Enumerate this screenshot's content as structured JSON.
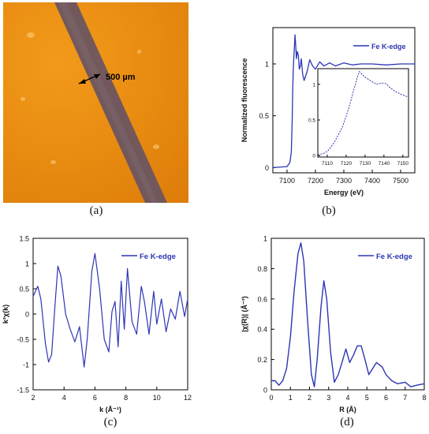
{
  "colors": {
    "series": "#2c36b4",
    "axis": "#000000",
    "micrograph_bg": "#e98d12",
    "fiber": "#6b5560"
  },
  "panel_labels": {
    "a": "(a)",
    "b": "(b)",
    "c": "(c)",
    "d": "(d)"
  },
  "micrograph": {
    "scale_label": "500 µm"
  },
  "chart_data": [
    {
      "panel": "b",
      "type": "line",
      "title": "",
      "xlabel": "Energy (eV)",
      "ylabel": "Normalized fluorescence",
      "xlim": [
        7050,
        7550
      ],
      "ylim": [
        -0.05,
        1.35
      ],
      "xticks": [
        "7100",
        "7200",
        "7300",
        "7400",
        "7500"
      ],
      "yticks": [
        "0",
        "0.5",
        "1"
      ],
      "legend": "top-right",
      "series": [
        {
          "name": "Fe K-edge",
          "x": [
            7050,
            7100,
            7110,
            7115,
            7118,
            7120,
            7122,
            7125,
            7128,
            7130,
            7133,
            7136,
            7140,
            7143,
            7147,
            7150,
            7155,
            7160,
            7170,
            7180,
            7190,
            7200,
            7215,
            7230,
            7250,
            7270,
            7300,
            7330,
            7360,
            7400,
            7450,
            7500,
            7550
          ],
          "y": [
            0.0,
            0.01,
            0.05,
            0.15,
            0.45,
            0.75,
            0.95,
            1.12,
            1.28,
            1.2,
            1.05,
            1.12,
            1.08,
            0.95,
            0.98,
            1.05,
            0.9,
            0.84,
            0.92,
            1.04,
            0.98,
            0.95,
            1.02,
            0.98,
            1.01,
            0.98,
            1.01,
            0.99,
            1.0,
            1.0,
            0.99,
            1.0,
            1.0
          ]
        }
      ],
      "inset": {
        "type": "line",
        "xlim": [
          7105,
          7153
        ],
        "ylim": [
          -0.02,
          1.22
        ],
        "xticks": [
          "7110",
          "7120",
          "7130",
          "7140",
          "7150"
        ],
        "yticks": [
          "0",
          "0.5",
          "1"
        ],
        "x": [
          7105,
          7108,
          7110,
          7112,
          7114,
          7116,
          7118,
          7120,
          7122,
          7124,
          7126,
          7127,
          7128,
          7130,
          7133,
          7136,
          7139,
          7141,
          7143,
          7146,
          7149,
          7153
        ],
        "y": [
          0.01,
          0.03,
          0.06,
          0.12,
          0.2,
          0.3,
          0.4,
          0.55,
          0.72,
          0.92,
          1.1,
          1.18,
          1.15,
          1.1,
          1.05,
          1.0,
          1.02,
          1.01,
          0.96,
          0.9,
          0.86,
          0.82
        ]
      }
    },
    {
      "panel": "c",
      "type": "line",
      "title": "",
      "xlabel": "k (Å⁻¹)",
      "ylabel": "k²χ(k)",
      "xlim": [
        2,
        12
      ],
      "ylim": [
        -1.5,
        1.5
      ],
      "xticks": [
        "2",
        "4",
        "6",
        "8",
        "10",
        "12"
      ],
      "yticks": [
        "-1.5",
        "-1",
        "-0.5",
        "0",
        "0.5",
        "1",
        "1.5"
      ],
      "legend": "top-right",
      "series": [
        {
          "name": "Fe K-edge",
          "x": [
            2.0,
            2.3,
            2.5,
            2.8,
            3.0,
            3.2,
            3.4,
            3.6,
            3.8,
            4.1,
            4.4,
            4.7,
            5.0,
            5.3,
            5.5,
            5.8,
            6.0,
            6.3,
            6.6,
            6.9,
            7.1,
            7.3,
            7.5,
            7.7,
            7.9,
            8.1,
            8.4,
            8.7,
            9.0,
            9.2,
            9.5,
            9.8,
            10.0,
            10.3,
            10.6,
            10.9,
            11.2,
            11.5,
            11.8,
            12.0
          ],
          "y": [
            0.35,
            0.55,
            0.3,
            -0.6,
            -0.95,
            -0.8,
            0.1,
            0.95,
            0.75,
            0.0,
            -0.3,
            -0.55,
            -0.25,
            -1.05,
            -0.5,
            0.85,
            1.2,
            0.5,
            -0.5,
            -0.75,
            0.05,
            0.25,
            -0.65,
            0.65,
            -0.3,
            0.9,
            -0.15,
            -0.4,
            0.55,
            0.25,
            -0.4,
            0.45,
            -0.2,
            0.3,
            -0.35,
            0.1,
            -0.1,
            0.45,
            -0.05,
            0.3
          ]
        }
      ]
    },
    {
      "panel": "d",
      "type": "line",
      "title": "",
      "xlabel": "R (Å)",
      "ylabel": "|χ(R)| (Å⁻³)",
      "xlim": [
        0,
        8
      ],
      "ylim": [
        0,
        1
      ],
      "xticks": [
        "0",
        "1",
        "2",
        "3",
        "4",
        "5",
        "6",
        "7",
        "8"
      ],
      "yticks": [
        "0",
        "0.2",
        "0.4",
        "0.6",
        "0.8",
        "1"
      ],
      "legend": "top-right",
      "series": [
        {
          "name": "Fe K-edge",
          "x": [
            0.0,
            0.2,
            0.4,
            0.6,
            0.8,
            1.0,
            1.2,
            1.4,
            1.55,
            1.7,
            1.9,
            2.1,
            2.25,
            2.4,
            2.6,
            2.75,
            2.9,
            3.1,
            3.3,
            3.5,
            3.7,
            3.9,
            4.1,
            4.3,
            4.5,
            4.7,
            4.9,
            5.1,
            5.3,
            5.5,
            5.8,
            6.0,
            6.3,
            6.6,
            7.0,
            7.3,
            7.6,
            8.0
          ],
          "y": [
            0.06,
            0.06,
            0.03,
            0.06,
            0.14,
            0.35,
            0.66,
            0.9,
            0.97,
            0.85,
            0.45,
            0.1,
            0.02,
            0.2,
            0.55,
            0.72,
            0.6,
            0.25,
            0.05,
            0.1,
            0.18,
            0.27,
            0.18,
            0.23,
            0.29,
            0.29,
            0.2,
            0.1,
            0.14,
            0.18,
            0.15,
            0.1,
            0.06,
            0.04,
            0.05,
            0.02,
            0.03,
            0.04
          ]
        }
      ]
    }
  ]
}
